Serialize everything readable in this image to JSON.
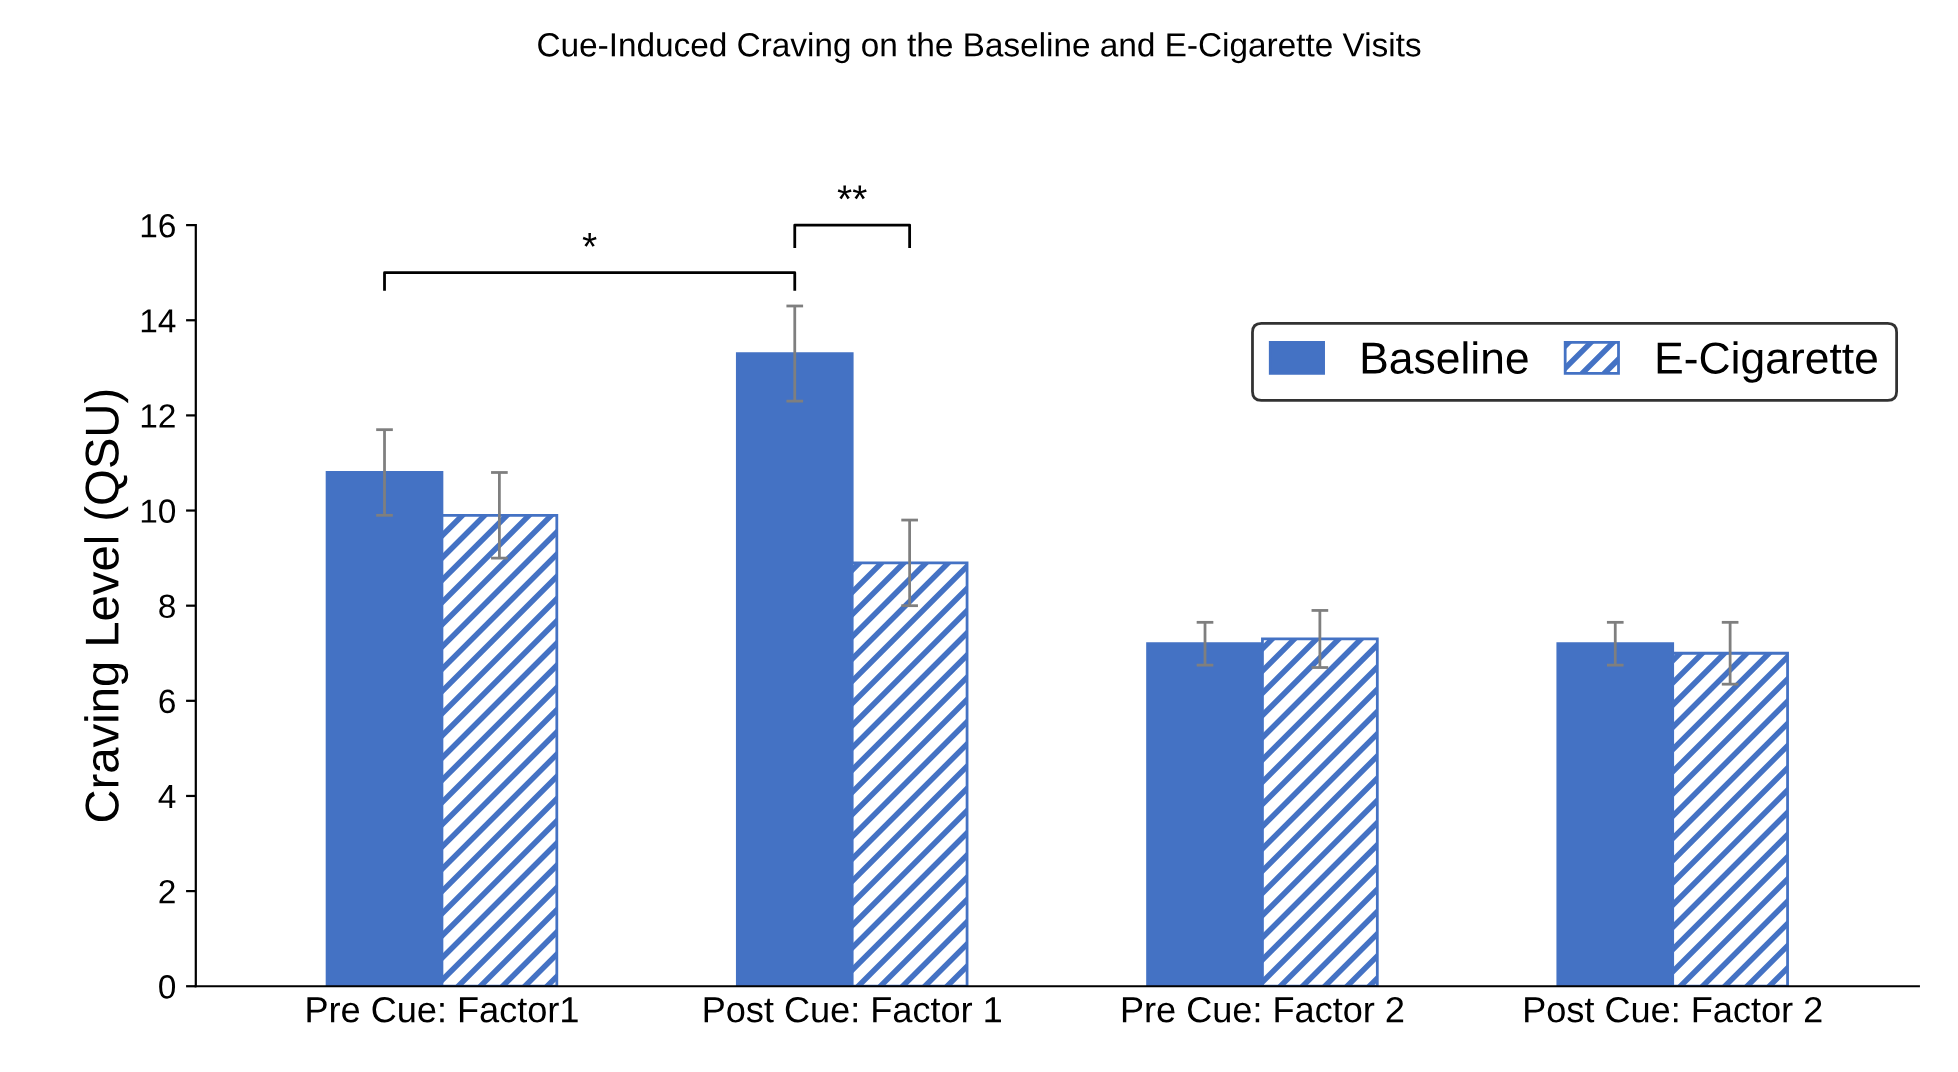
{
  "chart_data": {
    "type": "bar",
    "title": "Cue-Induced Craving on the Baseline and E-Cigarette Visits",
    "ylabel": "Craving Level (QSU)",
    "categories": [
      "Pre Cue: Factor1",
      "Post Cue: Factor 1",
      "Pre Cue: Factor 2",
      "Post Cue: Factor 2"
    ],
    "series": [
      {
        "name": "Baseline",
        "color": "#4472c4",
        "values": [
          10.8,
          13.3,
          7.2,
          7.2
        ],
        "errors": [
          0.9,
          1.0,
          0.45,
          0.45
        ]
      },
      {
        "name": "E-Cigarette",
        "color": "#4472c4",
        "values": [
          9.9,
          8.9,
          7.3,
          7.0
        ],
        "errors": [
          0.9,
          0.9,
          0.6,
          0.65
        ]
      }
    ],
    "ylim": [
      0,
      16
    ],
    "yticks": [
      0,
      2,
      4,
      6,
      8,
      10,
      12,
      14,
      16
    ],
    "grid": false,
    "legend": "top right",
    "annotations": [
      "*",
      "**"
    ]
  }
}
